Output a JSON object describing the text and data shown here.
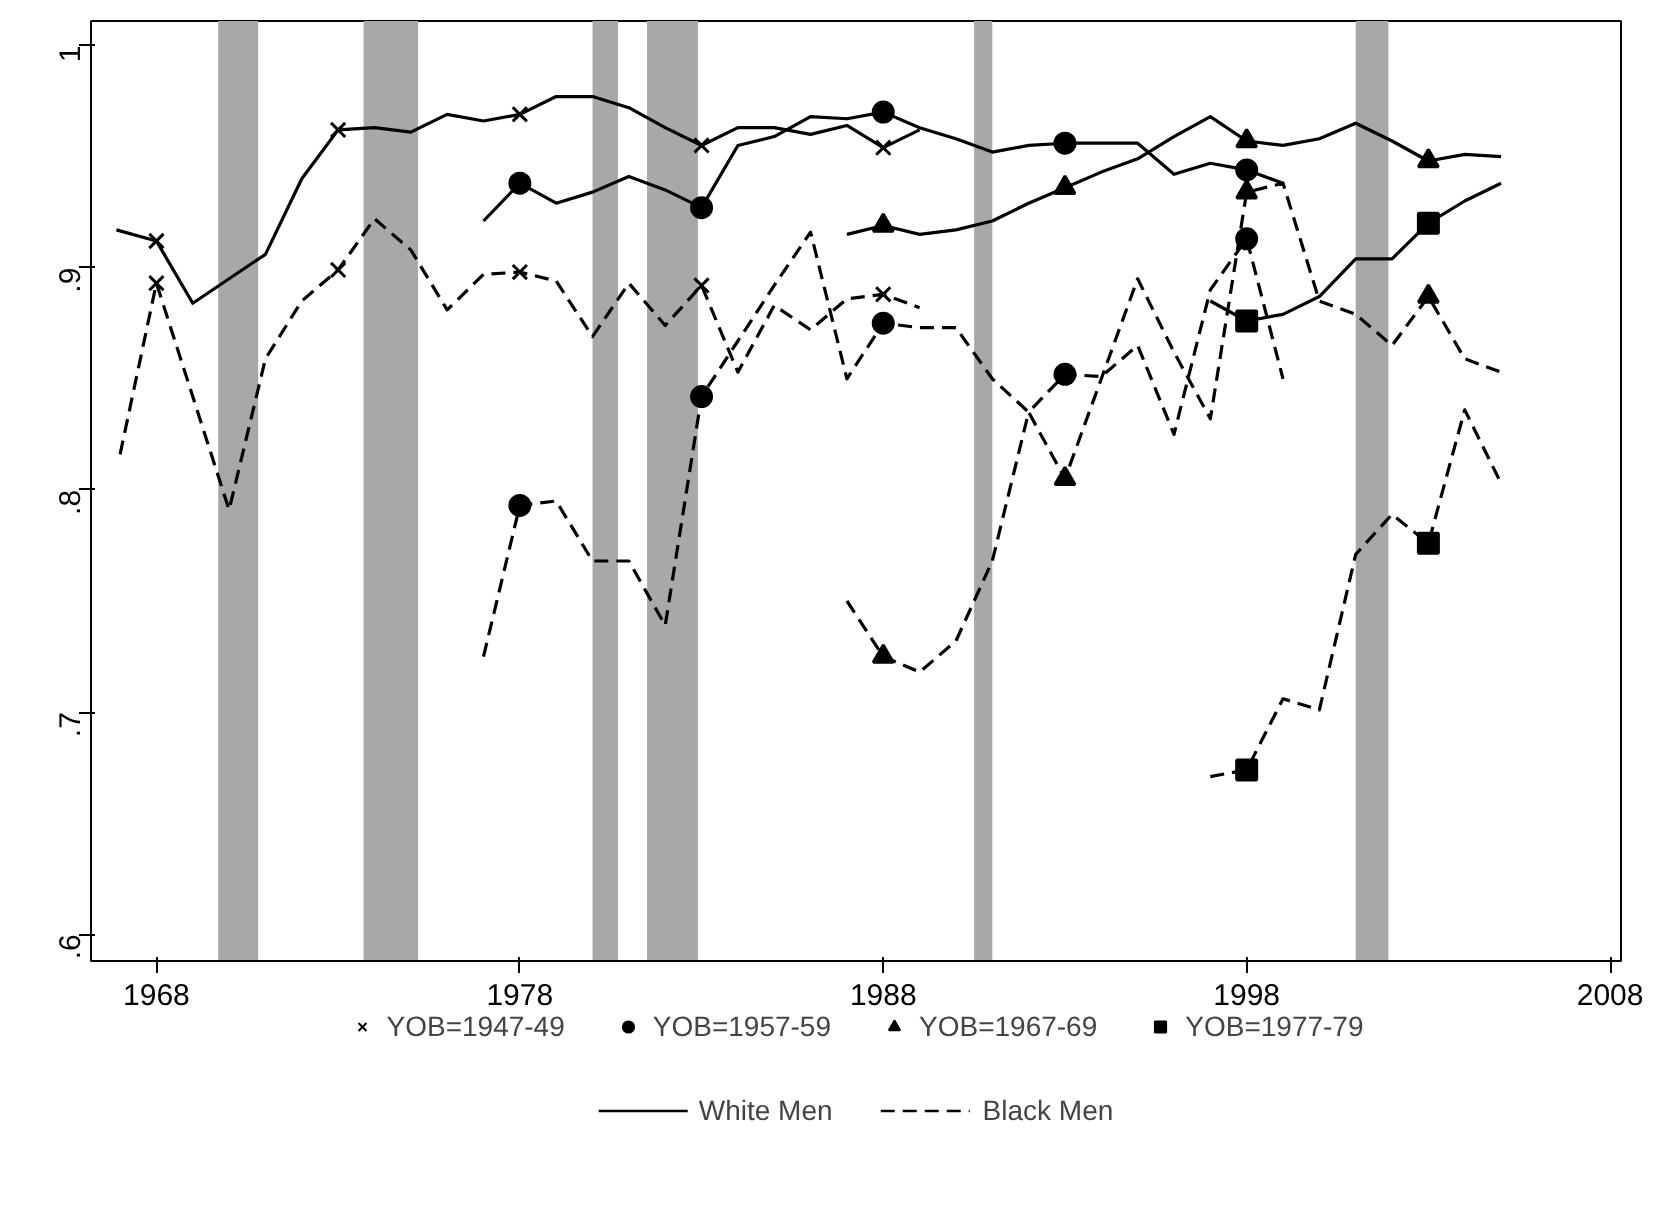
{
  "chart_data": {
    "type": "line",
    "xlim": [
      1966.2,
      2008.3
    ],
    "ylim": [
      0.588,
      1.011
    ],
    "xticks": [
      1968,
      1978,
      1988,
      1998,
      2008
    ],
    "yticks": [
      {
        "value": 0.6,
        "label": ".6"
      },
      {
        "value": 0.7,
        "label": ".7"
      },
      {
        "value": 0.8,
        "label": ".8"
      },
      {
        "value": 0.9,
        "label": ".9"
      },
      {
        "value": 1,
        "label": "1"
      }
    ],
    "grid": false,
    "legend": "bottom",
    "bands": [
      {
        "axis": "x",
        "from": 1969.7,
        "to": 1970.8,
        "color": "#a8a8a8"
      },
      {
        "axis": "x",
        "from": 1973.7,
        "to": 1975.2,
        "color": "#a8a8a8"
      },
      {
        "axis": "x",
        "from": 1980.0,
        "to": 1980.7,
        "color": "#a8a8a8"
      },
      {
        "axis": "x",
        "from": 1981.5,
        "to": 1982.9,
        "color": "#a8a8a8"
      },
      {
        "axis": "x",
        "from": 1990.5,
        "to": 1991.0,
        "color": "#a8a8a8"
      },
      {
        "axis": "x",
        "from": 2001.0,
        "to": 2001.9,
        "color": "#a8a8a8"
      }
    ],
    "series": [
      {
        "type": "scatter",
        "name": "YOB=1947-49",
        "marker": "cross",
        "color": "#000000",
        "x": [
          1968,
          1973,
          1978,
          1983,
          1988,
          1968,
          1973,
          1978,
          1983,
          1988
        ],
        "values": [
          0.912,
          0.962,
          0.969,
          0.955,
          0.954,
          0.893,
          0.899,
          0.898,
          0.892,
          0.888
        ]
      },
      {
        "type": "scatter",
        "name": "YOB=1957-59",
        "marker": "circle",
        "color": "#000000",
        "x": [
          1978,
          1983,
          1988,
          1993,
          1998,
          1978,
          1983,
          1988,
          1993,
          1998
        ],
        "values": [
          0.938,
          0.927,
          0.97,
          0.956,
          0.944,
          0.793,
          0.842,
          0.875,
          0.852,
          0.913
        ]
      },
      {
        "type": "scatter",
        "name": "YOB=1967-69",
        "marker": "triangle",
        "color": "#000000",
        "x": [
          1988,
          1993,
          1998,
          2003,
          1988,
          1993,
          1998,
          2003
        ],
        "values": [
          0.919,
          0.936,
          0.957,
          0.948,
          0.725,
          0.805,
          0.934,
          0.887
        ]
      },
      {
        "type": "scatter",
        "name": "YOB=1977-79",
        "marker": "square",
        "color": "#000000",
        "x": [
          1998,
          2003,
          1998,
          2003
        ],
        "values": [
          0.876,
          0.92,
          0.674,
          0.776
        ]
      },
      {
        "name": "White Men",
        "line_style": "solid",
        "color": "#000000",
        "x": [
          1966.9,
          1968,
          1969,
          1970,
          1971,
          1972,
          1973,
          1974,
          1975,
          1976,
          1977,
          1978,
          1979,
          1980,
          1981,
          1982,
          1983,
          1984,
          1985,
          1986,
          1987,
          1988,
          1989
        ],
        "values": [
          0.917,
          0.912,
          0.884,
          0.895,
          0.906,
          0.94,
          0.962,
          0.963,
          0.961,
          0.969,
          0.966,
          0.969,
          0.977,
          0.977,
          0.972,
          0.963,
          0.955,
          0.963,
          0.963,
          0.96,
          0.964,
          0.954,
          0.962
        ]
      },
      {
        "line_style": "solid",
        "color": "#000000",
        "x": [
          1977,
          1978,
          1979,
          1980,
          1981,
          1982,
          1983,
          1984,
          1985,
          1986,
          1987,
          1988,
          1989,
          1990,
          1991,
          1992,
          1993,
          1994,
          1995,
          1996,
          1997,
          1998,
          1999
        ],
        "values": [
          0.921,
          0.938,
          0.929,
          0.934,
          0.941,
          0.935,
          0.927,
          0.955,
          0.959,
          0.968,
          0.967,
          0.97,
          0.963,
          0.958,
          0.952,
          0.955,
          0.956,
          0.956,
          0.956,
          0.942,
          0.947,
          0.944,
          0.938
        ]
      },
      {
        "line_style": "solid",
        "color": "#000000",
        "x": [
          1987,
          1988,
          1989,
          1990,
          1991,
          1992,
          1993,
          1994,
          1995,
          1996,
          1997,
          1998,
          1999,
          2000,
          2001,
          2002,
          2003,
          2004,
          2005
        ],
        "values": [
          0.915,
          0.919,
          0.915,
          0.917,
          0.921,
          0.929,
          0.936,
          0.943,
          0.949,
          0.959,
          0.968,
          0.957,
          0.955,
          0.958,
          0.965,
          0.957,
          0.948,
          0.951,
          0.95
        ]
      },
      {
        "line_style": "solid",
        "color": "#000000",
        "x": [
          1997,
          1998,
          1999,
          2000,
          2001,
          2002,
          2003,
          2004,
          2005
        ],
        "values": [
          0.885,
          0.876,
          0.879,
          0.887,
          0.904,
          0.904,
          0.92,
          0.93,
          0.938
        ]
      },
      {
        "name": "Black Men",
        "line_style": "dashed",
        "color": "#000000",
        "x": [
          1967,
          1968,
          1969,
          1970,
          1971,
          1972,
          1973,
          1974,
          1975,
          1976,
          1977,
          1978,
          1979,
          1980,
          1981,
          1982,
          1983,
          1984,
          1985,
          1986,
          1987,
          1988,
          1989
        ],
        "values": [
          0.816,
          0.893,
          0.842,
          0.791,
          0.859,
          0.885,
          0.899,
          0.922,
          0.908,
          0.881,
          0.897,
          0.898,
          0.894,
          0.869,
          0.893,
          0.874,
          0.892,
          0.853,
          0.883,
          0.872,
          0.886,
          0.888,
          0.882
        ]
      },
      {
        "line_style": "dashed",
        "color": "#000000",
        "x": [
          1977,
          1978,
          1979,
          1980,
          1981,
          1982,
          1983,
          1984,
          1985,
          1986,
          1987,
          1988,
          1989,
          1990,
          1991,
          1992,
          1993,
          1994,
          1995,
          1996,
          1997,
          1998,
          1999
        ],
        "values": [
          0.725,
          0.793,
          0.795,
          0.768,
          0.768,
          0.739,
          0.842,
          0.867,
          0.892,
          0.916,
          0.85,
          0.875,
          0.873,
          0.873,
          0.85,
          0.835,
          0.852,
          0.851,
          0.865,
          0.825,
          0.89,
          0.913,
          0.85
        ]
      },
      {
        "line_style": "dashed",
        "color": "#000000",
        "x": [
          1987,
          1988,
          1989,
          1990,
          1991,
          1992,
          1993,
          1994,
          1995,
          1996,
          1997,
          1998,
          1999,
          2000,
          2001,
          2002,
          2003,
          2004,
          2005
        ],
        "values": [
          0.75,
          0.725,
          0.718,
          0.732,
          0.768,
          0.835,
          0.805,
          0.85,
          0.895,
          0.862,
          0.832,
          0.934,
          0.938,
          0.885,
          0.879,
          0.865,
          0.887,
          0.859,
          0.853
        ]
      },
      {
        "line_style": "dashed",
        "color": "#000000",
        "x": [
          1997,
          1998,
          1999,
          2000,
          2001,
          2002,
          2003,
          2004,
          2005
        ],
        "values": [
          0.671,
          0.674,
          0.706,
          0.701,
          0.771,
          0.789,
          0.776,
          0.836,
          0.803
        ]
      }
    ]
  }
}
